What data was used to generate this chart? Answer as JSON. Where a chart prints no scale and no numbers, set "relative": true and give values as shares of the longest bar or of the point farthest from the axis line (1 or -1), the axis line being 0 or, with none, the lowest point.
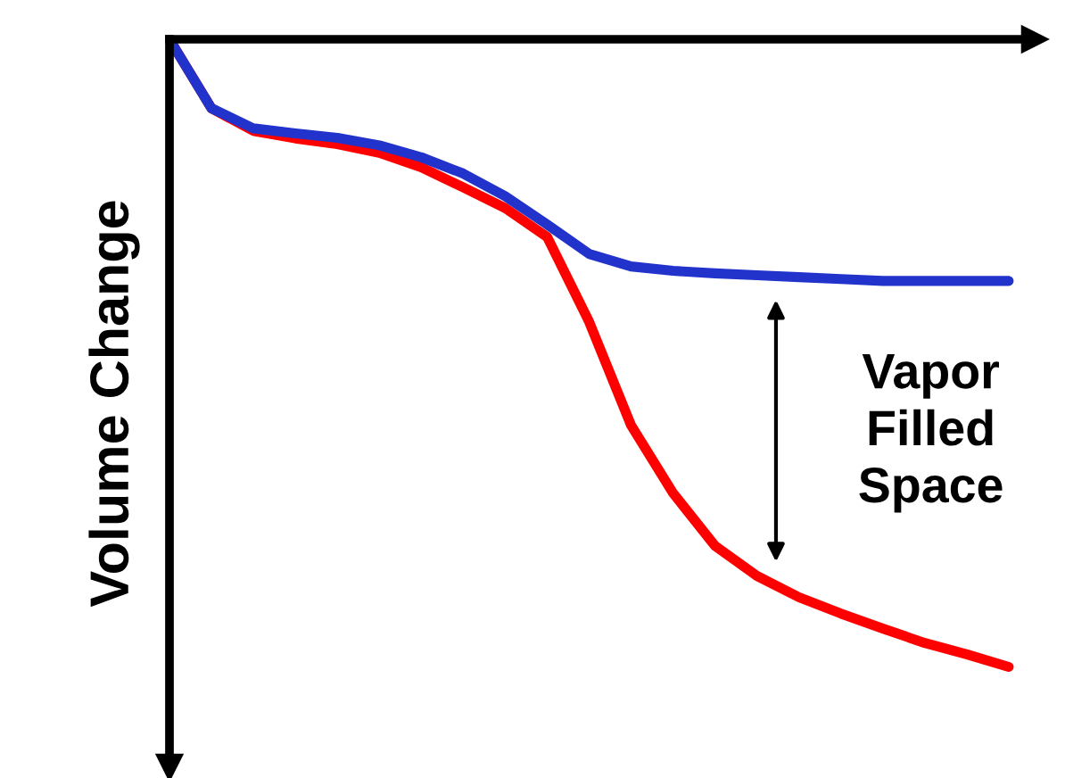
{
  "chart_data": {
    "type": "line",
    "relative": true,
    "ylabel": "Volume Change",
    "tick_labels": false,
    "legend": false,
    "marker": "none",
    "line_style": "solid",
    "categories": [
      null,
      null,
      null,
      null,
      null,
      null,
      null,
      null,
      null,
      null,
      null,
      null,
      null,
      null,
      null,
      null,
      null,
      null,
      null,
      null,
      null
    ],
    "series": [
      {
        "color": "#ff0000",
        "values": [
          0,
          -0.11,
          -0.146,
          -0.158,
          -0.167,
          -0.181,
          -0.204,
          -0.236,
          -0.269,
          -0.315,
          -0.45,
          -0.615,
          -0.723,
          -0.807,
          -0.855,
          -0.889,
          -0.915,
          -0.939,
          -0.962,
          -0.98,
          -1
        ]
      },
      {
        "color": "#2233cc",
        "values": [
          0,
          -0.11,
          -0.142,
          -0.15,
          -0.157,
          -0.169,
          -0.188,
          -0.214,
          -0.25,
          -0.295,
          -0.342,
          -0.362,
          -0.369,
          -0.373,
          -0.376,
          -0.379,
          -0.382,
          -0.385,
          -0.385,
          -0.385,
          -0.385
        ]
      }
    ],
    "annotations": [
      "Vapor\nFilled\nSpace"
    ]
  }
}
